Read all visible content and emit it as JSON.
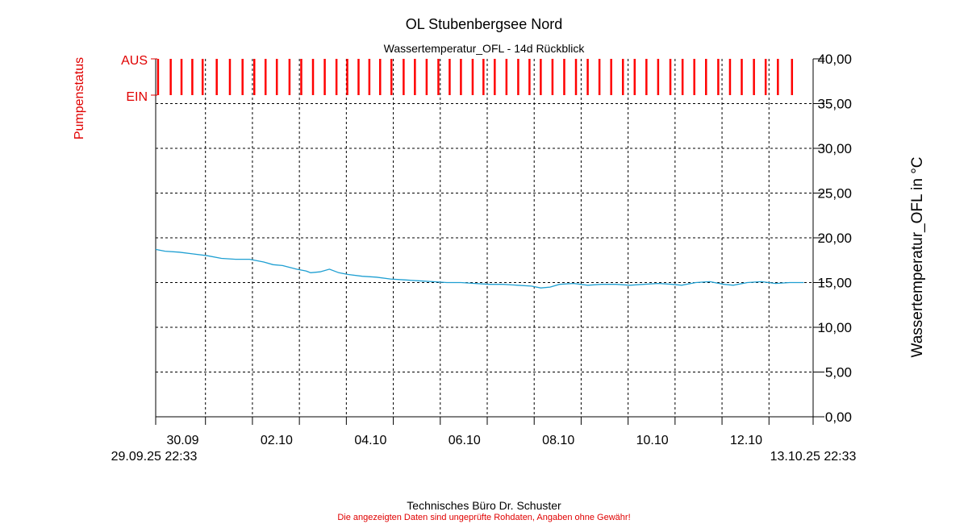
{
  "chart_data": {
    "type": "line",
    "title": "OL Stubenbergsee Nord",
    "subtitle": "Wassertemperatur_OFL - 14d Rückblick",
    "ylabel_right": "Wassertemperatur_OFL in °C",
    "ylabel_left": "Pumpenstatus",
    "status_labels": {
      "on": "EIN",
      "off": "AUS"
    },
    "ylim": [
      0,
      40
    ],
    "y_ticks": [
      "0,00",
      "5,00",
      "10,00",
      "15,00",
      "20,00",
      "25,00",
      "30,00",
      "35,00",
      "40,00"
    ],
    "x_range_days": [
      0,
      14
    ],
    "x_major_ticks": [
      {
        "day": 0.06,
        "label": "30.09"
      },
      {
        "day": 2.06,
        "label": "02.10"
      },
      {
        "day": 4.06,
        "label": "04.10"
      },
      {
        "day": 6.06,
        "label": "06.10"
      },
      {
        "day": 8.06,
        "label": "08.10"
      },
      {
        "day": 10.06,
        "label": "10.10"
      },
      {
        "day": 12.06,
        "label": "12.10"
      }
    ],
    "x_grid_days": [
      0,
      1.06,
      2.06,
      3.06,
      4.06,
      5.06,
      6.06,
      7.06,
      8.06,
      9.06,
      10.06,
      11.06,
      12.06,
      13.06,
      14
    ],
    "x_start_label": "29.09.25 22:33",
    "x_end_label": "13.10.25 22:33",
    "grid": true,
    "line_color": "#1e9fd2",
    "status_color": "#ff0000",
    "series": [
      {
        "x": [
          0,
          0.2,
          0.5,
          0.8,
          1.1,
          1.4,
          1.7,
          2.0,
          2.3,
          2.5,
          2.7,
          3.0,
          3.2,
          3.3,
          3.5,
          3.7,
          3.9,
          4.1,
          4.4,
          4.7,
          5.0,
          5.3,
          5.6,
          5.9,
          6.2,
          6.5,
          6.8,
          7.1,
          7.4,
          7.7,
          8.0,
          8.2,
          8.4,
          8.6,
          8.9,
          9.2,
          9.5,
          9.8,
          10.1,
          10.4,
          10.7,
          11.0,
          11.2,
          11.5,
          11.8,
          12.1,
          12.3,
          12.6,
          12.9,
          13.2,
          13.5,
          13.8
        ],
        "y": [
          18.7,
          18.5,
          18.4,
          18.2,
          18.0,
          17.7,
          17.6,
          17.6,
          17.3,
          17.0,
          16.9,
          16.5,
          16.3,
          16.1,
          16.2,
          16.5,
          16.1,
          15.9,
          15.7,
          15.6,
          15.4,
          15.3,
          15.2,
          15.1,
          15.0,
          15.0,
          14.9,
          14.8,
          14.8,
          14.7,
          14.6,
          14.4,
          14.5,
          14.8,
          14.9,
          14.7,
          14.8,
          14.8,
          14.7,
          14.8,
          14.9,
          14.8,
          14.7,
          15.0,
          15.1,
          14.8,
          14.7,
          15.0,
          15.1,
          14.9,
          15.0,
          15.0
        ]
      }
    ],
    "pump_on_days": [
      0.05,
      0.32,
      0.55,
      0.78,
      1.0,
      1.3,
      1.58,
      1.85,
      2.1,
      2.34,
      2.58,
      2.85,
      3.1,
      3.35,
      3.6,
      3.85,
      4.08,
      4.32,
      4.55,
      4.78,
      5.02,
      5.28,
      5.52,
      5.77,
      6.02,
      6.26,
      6.5,
      6.75,
      6.98,
      7.22,
      7.47,
      7.72,
      7.96,
      8.2,
      8.45,
      8.7,
      8.95,
      9.2,
      9.45,
      9.7,
      9.95,
      10.2,
      10.45,
      10.7,
      10.96,
      11.22,
      11.47,
      11.72,
      11.98,
      12.23,
      12.48,
      12.74,
      12.99,
      13.25,
      13.55
    ]
  },
  "footer": {
    "company": "Technisches Büro Dr. Schuster",
    "disclaimer": "Die angezeigten Daten sind ungeprüfte Rohdaten, Angaben ohne Gewähr!"
  }
}
